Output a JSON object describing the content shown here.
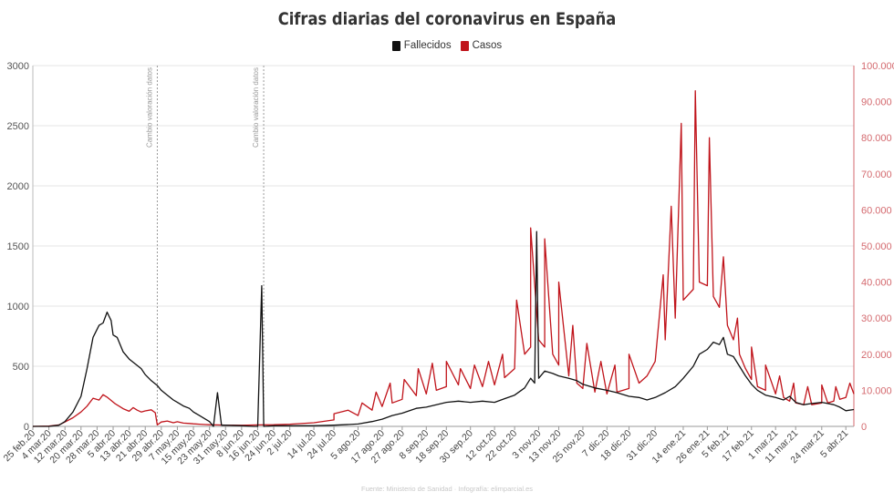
{
  "colors": {
    "fallecidos": "#111111",
    "casos": "#c0141b",
    "grid": "#e6e6e6",
    "right_axis": "#d46a6f",
    "ref_line": "#9a9a9a"
  },
  "chart_data": {
    "type": "line",
    "title": "Cifras diarias del coronavirus en España",
    "source": "Fuente: Ministerio de Sanidad · Infografía: elimparcial.es",
    "grid": true,
    "legend_position": "top-center",
    "left_axis": {
      "ylim": [
        0,
        3000
      ],
      "ticks": [
        "0",
        "500",
        "1000",
        "1500",
        "2000",
        "2500",
        "3000"
      ]
    },
    "right_axis": {
      "ylim": [
        0,
        100000
      ],
      "ticks": [
        "0",
        "10.000",
        "20.000",
        "30.000",
        "40.000",
        "50.000",
        "60.000",
        "70.000",
        "80.000",
        "90.000",
        "100.000"
      ]
    },
    "x_tick_labels": [
      "25 feb.20",
      "4 mar.20",
      "12 mar.20",
      "20 mar.20",
      "28 mar.20",
      "5 abr.20",
      "13 abr.20",
      "21 abr.20",
      "29 abr.20",
      "7 may.20",
      "15 may.20",
      "23 may.20",
      "31 may.20",
      "8 jun.20",
      "16 jun.20",
      "24 jun.20",
      "2 jul.20",
      "14 jul.20",
      "24 jul.20",
      "5 ago.20",
      "17 ago.20",
      "27 ago.20",
      "8 sep.20",
      "18 sep.20",
      "30 sep.20",
      "12 oct.20",
      "22 oct.20",
      "3 nov.20",
      "13 nov.20",
      "25 nov.20",
      "7 dic.20",
      "18 dic.20",
      "31 dic.20",
      "14 ene.21",
      "26 ene.21",
      "5 feb.21",
      "17 feb.21",
      "1 mar.21",
      "11 mar.21",
      "24 mar.21",
      "5 abr.21"
    ],
    "annotations": [
      {
        "label": "Cambio valoración datos",
        "date": "27 abr.20"
      },
      {
        "label": "Cambio valoración datos",
        "date": "19 jun.20"
      }
    ],
    "series": [
      {
        "name": "Fallecidos",
        "axis": "left",
        "points": [
          [
            "25 feb.20",
            0
          ],
          [
            "4 mar.20",
            0
          ],
          [
            "9 mar.20",
            10
          ],
          [
            "12 mar.20",
            40
          ],
          [
            "16 mar.20",
            120
          ],
          [
            "20 mar.20",
            250
          ],
          [
            "23 mar.20",
            480
          ],
          [
            "26 mar.20",
            740
          ],
          [
            "29 mar.20",
            840
          ],
          [
            "31 mar.20",
            860
          ],
          [
            "2 abr.20",
            950
          ],
          [
            "4 abr.20",
            880
          ],
          [
            "5 abr.20",
            760
          ],
          [
            "7 abr.20",
            740
          ],
          [
            "10 abr.20",
            620
          ],
          [
            "13 abr.20",
            560
          ],
          [
            "16 abr.20",
            520
          ],
          [
            "19 abr.20",
            480
          ],
          [
            "21 abr.20",
            430
          ],
          [
            "24 abr.20",
            380
          ],
          [
            "27 abr.20",
            340
          ],
          [
            "29 abr.20",
            300
          ],
          [
            "2 may.20",
            260
          ],
          [
            "5 may.20",
            220
          ],
          [
            "7 may.20",
            200
          ],
          [
            "10 may.20",
            170
          ],
          [
            "13 may.20",
            150
          ],
          [
            "15 may.20",
            120
          ],
          [
            "18 may.20",
            90
          ],
          [
            "21 may.20",
            60
          ],
          [
            "23 may.20",
            40
          ],
          [
            "25 may.20",
            0
          ],
          [
            "27 may.20",
            280
          ],
          [
            "29 may.20",
            10
          ],
          [
            "31 may.20",
            10
          ],
          [
            "8 jun.20",
            5
          ],
          [
            "14 jun.20",
            0
          ],
          [
            "16 jun.20",
            0
          ],
          [
            "18 jun.20",
            1170
          ],
          [
            "19 jun.20",
            0
          ],
          [
            "24 jun.20",
            5
          ],
          [
            "2 jul.20",
            5
          ],
          [
            "14 jul.20",
            5
          ],
          [
            "24 jul.20",
            10
          ],
          [
            "5 ago.20",
            20
          ],
          [
            "12 ago.20",
            40
          ],
          [
            "17 ago.20",
            60
          ],
          [
            "22 ago.20",
            90
          ],
          [
            "27 ago.20",
            110
          ],
          [
            "3 sep.20",
            150
          ],
          [
            "8 sep.20",
            160
          ],
          [
            "13 sep.20",
            180
          ],
          [
            "18 sep.20",
            200
          ],
          [
            "24 sep.20",
            210
          ],
          [
            "30 sep.20",
            200
          ],
          [
            "6 oct.20",
            210
          ],
          [
            "12 oct.20",
            200
          ],
          [
            "17 oct.20",
            230
          ],
          [
            "22 oct.20",
            260
          ],
          [
            "27 oct.20",
            320
          ],
          [
            "30 oct.20",
            400
          ],
          [
            "1 nov.20",
            360
          ],
          [
            "2 nov.20",
            1620
          ],
          [
            "3 nov.20",
            400
          ],
          [
            "6 nov.20",
            460
          ],
          [
            "10 nov.20",
            440
          ],
          [
            "13 nov.20",
            420
          ],
          [
            "18 nov.20",
            400
          ],
          [
            "22 nov.20",
            380
          ],
          [
            "25 nov.20",
            350
          ],
          [
            "1 dic.20",
            320
          ],
          [
            "7 dic.20",
            300
          ],
          [
            "12 dic.20",
            280
          ],
          [
            "18 dic.20",
            250
          ],
          [
            "23 dic.20",
            240
          ],
          [
            "27 dic.20",
            220
          ],
          [
            "31 dic.20",
            240
          ],
          [
            "5 ene.21",
            280
          ],
          [
            "10 ene.21",
            330
          ],
          [
            "14 ene.21",
            400
          ],
          [
            "19 ene.21",
            500
          ],
          [
            "22 ene.21",
            600
          ],
          [
            "26 ene.21",
            640
          ],
          [
            "29 ene.21",
            700
          ],
          [
            "1 feb.21",
            680
          ],
          [
            "3 feb.21",
            740
          ],
          [
            "5 feb.21",
            600
          ],
          [
            "8 feb.21",
            580
          ],
          [
            "11 feb.21",
            500
          ],
          [
            "14 feb.21",
            420
          ],
          [
            "17 feb.21",
            350
          ],
          [
            "20 feb.21",
            300
          ],
          [
            "24 feb.21",
            260
          ],
          [
            "1 mar.21",
            240
          ],
          [
            "5 mar.21",
            220
          ],
          [
            "8 mar.21",
            250
          ],
          [
            "11 mar.21",
            200
          ],
          [
            "15 mar.21",
            180
          ],
          [
            "19 mar.21",
            190
          ],
          [
            "24 mar.21",
            200
          ],
          [
            "27 mar.21",
            190
          ],
          [
            "30 mar.21",
            180
          ],
          [
            "2 abr.21",
            160
          ],
          [
            "5 abr.21",
            130
          ],
          [
            "9 abr.21",
            140
          ]
        ]
      },
      {
        "name": "Casos",
        "axis": "right",
        "points": [
          [
            "25 feb.20",
            0
          ],
          [
            "4 mar.20",
            100
          ],
          [
            "9 mar.20",
            400
          ],
          [
            "12 mar.20",
            1200
          ],
          [
            "16 mar.20",
            2400
          ],
          [
            "20 mar.20",
            4000
          ],
          [
            "23 mar.20",
            5600
          ],
          [
            "26 mar.20",
            7800
          ],
          [
            "29 mar.20",
            7300
          ],
          [
            "31 mar.20",
            8800
          ],
          [
            "2 abr.20",
            8100
          ],
          [
            "4 abr.20",
            7200
          ],
          [
            "6 abr.20",
            6300
          ],
          [
            "8 abr.20",
            5600
          ],
          [
            "10 abr.20",
            4900
          ],
          [
            "13 abr.20",
            4200
          ],
          [
            "15 abr.20",
            5200
          ],
          [
            "17 abr.20",
            4500
          ],
          [
            "19 abr.20",
            4000
          ],
          [
            "21 abr.20",
            4300
          ],
          [
            "24 abr.20",
            4600
          ],
          [
            "26 abr.20",
            3800
          ],
          [
            "27 abr.20",
            400
          ],
          [
            "29 abr.20",
            1200
          ],
          [
            "2 may.20",
            1500
          ],
          [
            "5 may.20",
            1000
          ],
          [
            "7 may.20",
            1300
          ],
          [
            "10 may.20",
            900
          ],
          [
            "13 may.20",
            800
          ],
          [
            "15 may.20",
            700
          ],
          [
            "18 may.20",
            600
          ],
          [
            "21 may.20",
            500
          ],
          [
            "23 may.20",
            450
          ],
          [
            "27 may.20",
            400
          ],
          [
            "31 may.20",
            350
          ],
          [
            "8 jun.20",
            300
          ],
          [
            "16 jun.20",
            400
          ],
          [
            "24 jun.20",
            450
          ],
          [
            "2 jul.20",
            600
          ],
          [
            "14 jul.20",
            1000
          ],
          [
            "24 jul.20",
            1800
          ],
          [
            "5 ago.20",
            3000
          ],
          [
            "12 ago.20",
            4500
          ],
          [
            "17 ago.20",
            5500
          ],
          [
            "22 ago.20",
            6500
          ],
          [
            "27 ago.20",
            7500
          ],
          [
            "3 sep.20",
            8500
          ],
          [
            "8 sep.20",
            9000
          ],
          [
            "13 sep.20",
            10000
          ],
          [
            "18 sep.20",
            11000
          ],
          [
            "24 sep.20",
            11500
          ],
          [
            "30 sep.20",
            10500
          ],
          [
            "6 oct.20",
            11000
          ],
          [
            "12 oct.20",
            11500
          ],
          [
            "17 oct.20",
            13500
          ],
          [
            "22 oct.20",
            16000
          ],
          [
            "27 oct.20",
            20000
          ],
          [
            "30 oct.20",
            22000
          ],
          [
            "3 nov.20",
            24000
          ],
          [
            "6 nov.20",
            22000
          ],
          [
            "10 nov.20",
            20000
          ],
          [
            "13 nov.20",
            17000
          ],
          [
            "18 nov.20",
            14000
          ],
          [
            "22 nov.20",
            12000
          ],
          [
            "25 nov.20",
            10500
          ],
          [
            "1 dic.20",
            9500
          ],
          [
            "7 dic.20",
            9000
          ],
          [
            "12 dic.20",
            9500
          ],
          [
            "18 dic.20",
            10500
          ],
          [
            "23 dic.20",
            12000
          ],
          [
            "27 dic.20",
            14000
          ],
          [
            "31 dic.20",
            18000
          ],
          [
            "5 ene.21",
            24000
          ],
          [
            "10 ene.21",
            30000
          ],
          [
            "14 ene.21",
            35000
          ],
          [
            "19 ene.21",
            38000
          ],
          [
            "22 ene.21",
            40000
          ],
          [
            "26 ene.21",
            39000
          ],
          [
            "29 ene.21",
            36000
          ],
          [
            "1 feb.21",
            33000
          ],
          [
            "5 feb.21",
            28000
          ],
          [
            "8 feb.21",
            24000
          ],
          [
            "11 feb.21",
            20000
          ],
          [
            "14 feb.21",
            16000
          ],
          [
            "17 feb.21",
            13000
          ],
          [
            "20 feb.21",
            11000
          ],
          [
            "24 feb.21",
            10000
          ],
          [
            "1 mar.21",
            9000
          ],
          [
            "5 mar.21",
            8000
          ],
          [
            "8 mar.21",
            7000
          ],
          [
            "11 mar.21",
            6500
          ],
          [
            "15 mar.21",
            6000
          ],
          [
            "19 mar.21",
            6000
          ],
          [
            "24 mar.21",
            6500
          ],
          [
            "27 mar.21",
            6500
          ],
          [
            "30 mar.21",
            7000
          ],
          [
            "2 abr.21",
            7500
          ],
          [
            "5 abr.21",
            8000
          ],
          [
            "9 abr.21",
            9000
          ]
        ],
        "weekly_peaks": [
          [
            "24 jul.20",
            3500
          ],
          [
            "31 jul.20",
            4500
          ],
          [
            "7 ago.20",
            6500
          ],
          [
            "14 ago.20",
            9500
          ],
          [
            "21 ago.20",
            12000
          ],
          [
            "28 ago.20",
            13000
          ],
          [
            "4 sep.20",
            16000
          ],
          [
            "11 sep.20",
            17500
          ],
          [
            "18 sep.20",
            18000
          ],
          [
            "25 sep.20",
            16000
          ],
          [
            "2 oct.20",
            17000
          ],
          [
            "9 oct.20",
            18000
          ],
          [
            "16 oct.20",
            20000
          ],
          [
            "23 oct.20",
            35000
          ],
          [
            "30 oct.20",
            55000
          ],
          [
            "6 nov.20",
            52000
          ],
          [
            "13 nov.20",
            40000
          ],
          [
            "20 nov.20",
            28000
          ],
          [
            "27 nov.20",
            23000
          ],
          [
            "4 dic.20",
            18000
          ],
          [
            "11 dic.20",
            17000
          ],
          [
            "18 dic.20",
            20000
          ],
          [
            "4 ene.21",
            42000
          ],
          [
            "8 ene.21",
            61000
          ],
          [
            "13 ene.21",
            84000
          ],
          [
            "20 ene.21",
            93000
          ],
          [
            "27 ene.21",
            80000
          ],
          [
            "3 feb.21",
            47000
          ],
          [
            "10 feb.21",
            30000
          ],
          [
            "17 feb.21",
            22000
          ],
          [
            "24 feb.21",
            17000
          ],
          [
            "3 mar.21",
            14000
          ],
          [
            "10 mar.21",
            12000
          ],
          [
            "17 mar.21",
            11000
          ],
          [
            "24 mar.21",
            11500
          ],
          [
            "31 mar.21",
            11000
          ],
          [
            "7 abr.21",
            12000
          ]
        ]
      }
    ]
  }
}
